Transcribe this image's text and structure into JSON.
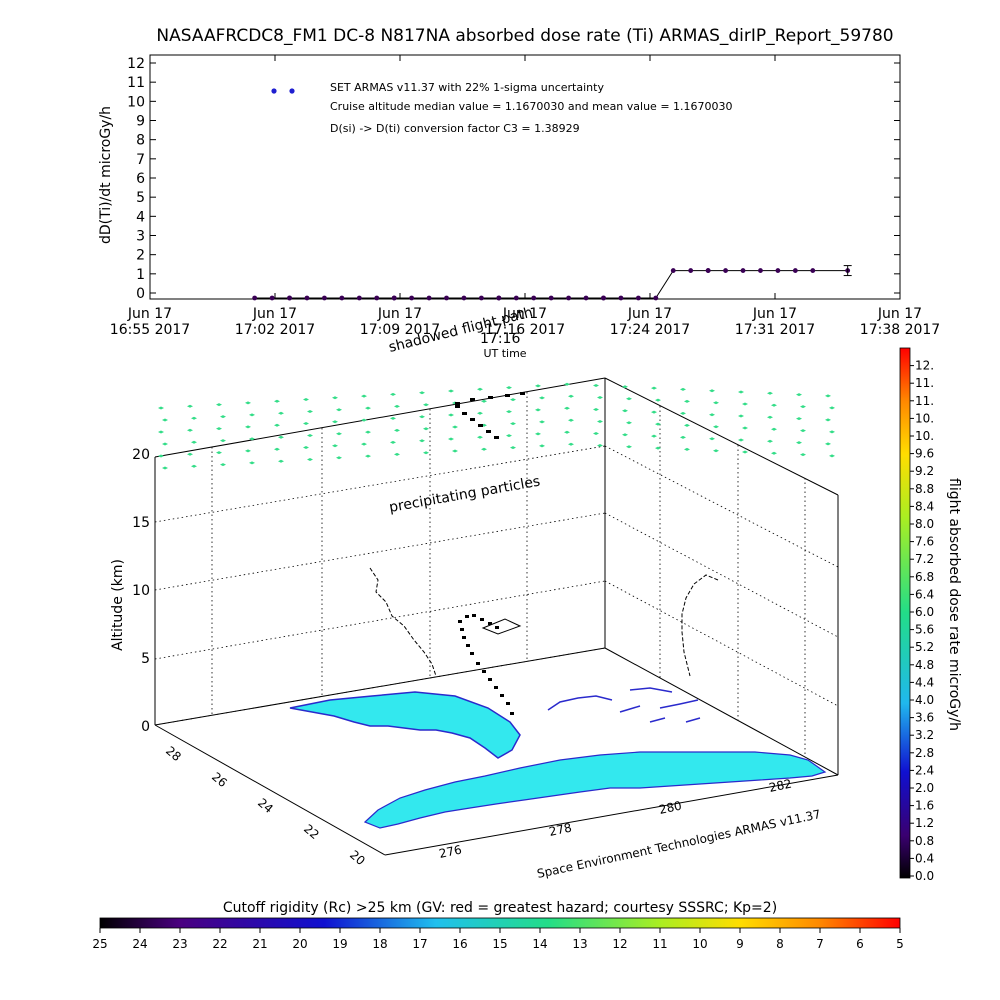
{
  "chart_data": [
    {
      "type": "scatter",
      "title": "NASAAFRCDC8_FM1 DC-8   N817NA absorbed dose rate (Ti) ARMAS_dirIP_Report_59780",
      "ylabel": "dD(Ti)/dt microGy/h",
      "xlabel": "UT time",
      "ylim": [
        0,
        12
      ],
      "yticks": [
        "0",
        "1",
        "2",
        "3",
        "4",
        "5",
        "6",
        "7",
        "8",
        "9",
        "10",
        "11",
        "12"
      ],
      "xticks": [
        {
          "day": "Jun 17",
          "time": "16:55 2017"
        },
        {
          "day": "Jun 17",
          "time": "17:02 2017"
        },
        {
          "day": "Jun 17",
          "time": "17:09 2017"
        },
        {
          "day": "Jun 17",
          "time": "17:16 2017"
        },
        {
          "day": "Jun 17",
          "time": "17:24 2017"
        },
        {
          "day": "Jun 17",
          "time": "17:31 2017"
        },
        {
          "day": "Jun 17",
          "time": "17:38 2017"
        }
      ],
      "legend": "SET ARMAS v11.37 with 22% 1-sigma uncertainty",
      "annotations": [
        "Cruise altitude median value = 1.1670030 and mean value = 1.1670030",
        "D(si) -> D(ti) conversion factor C3 = 1.38929"
      ],
      "series": [
        {
          "x": [
            "17:01",
            "17:02",
            "17:03",
            "17:03",
            "17:04",
            "17:05",
            "17:06",
            "17:07",
            "17:08",
            "17:09",
            "17:09",
            "17:10",
            "17:11",
            "17:12",
            "17:13",
            "17:14",
            "17:15",
            "17:15",
            "17:16",
            "17:17",
            "17:18",
            "17:19",
            "17:20",
            "17:21",
            "17:21",
            "17:22",
            "17:23",
            "17:24",
            "17:25",
            "17:26",
            "17:27",
            "17:27",
            "17:28",
            "17:29",
            "17:30",
            "17:31",
            "17:32",
            "17:33",
            "17:35"
          ],
          "y": [
            0,
            0,
            0,
            0,
            0,
            0,
            0,
            0,
            0,
            0,
            0,
            0,
            0,
            0,
            0,
            0,
            0,
            0,
            0,
            0,
            0,
            0,
            0,
            0,
            0,
            0,
            0,
            0,
            1.17,
            1.17,
            1.17,
            1.17,
            1.17,
            1.17,
            1.17,
            1.17,
            1.17,
            1.17,
            1.17
          ],
          "error": 0.26
        }
      ],
      "grid": false
    },
    {
      "type": "scatter",
      "zlabel": "Altitude (km)",
      "zticks": [
        "0",
        "5",
        "10",
        "15",
        "20"
      ],
      "latticks": [
        "28",
        "26",
        "24",
        "22",
        "20"
      ],
      "lonticks": [
        "276",
        "278",
        "280",
        "282"
      ],
      "annotations": [
        "precipitating particles",
        "shadowed flight path",
        "17:16"
      ],
      "credit": "Space Environment Technologies ARMAS v11.37",
      "track": {
        "time": [
          "17:01",
          "17:05",
          "17:09",
          "17:13",
          "17:17",
          "17:21",
          "17:25",
          "17:29",
          "17:33",
          "17:35"
        ],
        "altitude_km": [
          0.2,
          2.5,
          5.5,
          7.8,
          8.3,
          8.5,
          8.6,
          8.4,
          8.1,
          7.9
        ]
      }
    }
  ],
  "colorbar_right": {
    "label": "flight absorbed dose rate microGy/h",
    "ticks": [
      "0.0",
      "0.4",
      "0.8",
      "1.2",
      "1.6",
      "2.0",
      "2.4",
      "2.8",
      "3.2",
      "3.6",
      "4.0",
      "4.4",
      "4.8",
      "5.2",
      "5.6",
      "6.0",
      "6.4",
      "6.8",
      "7.2",
      "7.6",
      "8.0",
      "8.4",
      "8.8",
      "9.2",
      "9.6",
      "10.",
      "10.",
      "11.",
      "11.",
      "12."
    ]
  },
  "colorbar_bottom": {
    "label": "Cutoff rigidity (Rc) >25 km (GV: red = greatest hazard; courtesy SSSRC; Kp=2)",
    "ticks": [
      "25",
      "24",
      "23",
      "22",
      "21",
      "20",
      "19",
      "18",
      "17",
      "16",
      "15",
      "14",
      "13",
      "12",
      "11",
      "10",
      "9",
      "8",
      "7",
      "6",
      "5"
    ]
  },
  "colors": {
    "marker": "#1f1fd0",
    "data": "#3a0055",
    "particles": "#33dd88",
    "land": "#33e8ee",
    "coast": "#2a2acc"
  }
}
